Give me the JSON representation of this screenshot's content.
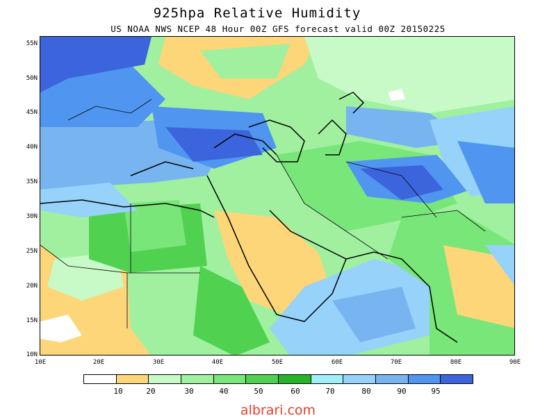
{
  "title": "925hpa Relative Humidity",
  "subtitle": "US NOAA NWS NCEP 48 Hour 00Z GFS forecast valid 00Z 20150225",
  "watermark": "albrari.com",
  "y_labels": [
    "55N",
    "50N",
    "45N",
    "40N",
    "35N",
    "30N",
    "25N",
    "20N",
    "15N",
    "10N"
  ],
  "x_labels": [
    "10E",
    "20E",
    "30E",
    "40E",
    "50E",
    "60E",
    "70E",
    "80E",
    "90E"
  ],
  "colorbar": {
    "colors": [
      "#ffffff",
      "#fcd679",
      "#c8fac8",
      "#a0f0a0",
      "#78e678",
      "#50d250",
      "#28b428",
      "#a0f0fa",
      "#96d2fa",
      "#78b4f0",
      "#5096f0",
      "#3c64dc"
    ],
    "labels": [
      "10",
      "20",
      "30",
      "40",
      "50",
      "60",
      "70",
      "80",
      "90",
      "95"
    ]
  }
}
